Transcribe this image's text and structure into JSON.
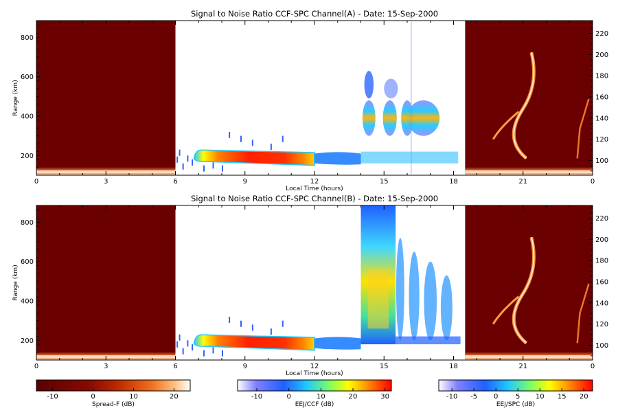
{
  "colors": {
    "spreadf_bg": "#6b0000",
    "spreadf_scale": [
      "#5a0000",
      "#8a0a00",
      "#c03000",
      "#f07020",
      "#ffc080",
      "#ffffff"
    ],
    "ccf_scale": [
      "#ffffff",
      "#8080ff",
      "#2060ff",
      "#20c8ff",
      "#80ff60",
      "#ffff00",
      "#ff8000",
      "#ff0000"
    ],
    "spc_scale": [
      "#ffffff",
      "#8080ff",
      "#2060ff",
      "#20c8ff",
      "#80ff60",
      "#ffff00",
      "#ff8000",
      "#ff0000"
    ]
  },
  "chart_data": [
    {
      "type": "heatmap",
      "title": "Signal to Noise Ratio CCF-SPC Channel(A) - Date: 15-Sep-2000",
      "xlabel": "Local Time (hours)",
      "ylabel": "Range (km)",
      "x_ticks": [
        "0",
        "3",
        "6",
        "9",
        "12",
        "15",
        "18",
        "21",
        "0"
      ],
      "x_tick_values": [
        0,
        3,
        6,
        9,
        12,
        15,
        18,
        21,
        24
      ],
      "y_ticks": [
        "200",
        "400",
        "600",
        "800"
      ],
      "y_tick_values": [
        200,
        400,
        600,
        800
      ],
      "ylim": [
        100,
        885
      ],
      "y2_ticks": [
        "100",
        "120",
        "140",
        "160",
        "180",
        "200",
        "220"
      ],
      "y2_tick_values": [
        100,
        120,
        140,
        160,
        180,
        200,
        220
      ],
      "y2lim": [
        86,
        232
      ],
      "segments": [
        {
          "name": "Spread-F",
          "x_range": [
            0,
            6
          ]
        },
        {
          "name": "EEJ/CCF",
          "x_range": [
            6,
            14
          ]
        },
        {
          "name": "EEJ/SPC",
          "x_range": [
            14,
            18.5
          ]
        },
        {
          "name": "Spread-F",
          "x_range": [
            18.5,
            24
          ]
        }
      ]
    },
    {
      "type": "heatmap",
      "title": "Signal to Noise Ratio CCF-SPC Channel(B) - Date: 15-Sep-2000",
      "xlabel": "Local Time (hours)",
      "ylabel": "Range (km)",
      "x_ticks": [
        "0",
        "3",
        "6",
        "9",
        "12",
        "15",
        "18",
        "21",
        "0"
      ],
      "x_tick_values": [
        0,
        3,
        6,
        9,
        12,
        15,
        18,
        21,
        24
      ],
      "y_ticks": [
        "200",
        "400",
        "600",
        "800"
      ],
      "y_tick_values": [
        200,
        400,
        600,
        800
      ],
      "ylim": [
        100,
        885
      ],
      "y2_ticks": [
        "100",
        "120",
        "140",
        "160",
        "180",
        "200",
        "220"
      ],
      "y2_tick_values": [
        100,
        120,
        140,
        160,
        180,
        200,
        220
      ],
      "y2lim": [
        86,
        232
      ],
      "segments": [
        {
          "name": "Spread-F",
          "x_range": [
            0,
            6
          ]
        },
        {
          "name": "EEJ/CCF",
          "x_range": [
            6,
            14
          ]
        },
        {
          "name": "EEJ/SPC",
          "x_range": [
            14,
            18.5
          ]
        },
        {
          "name": "Spread-F",
          "x_range": [
            18.5,
            24
          ]
        }
      ]
    }
  ],
  "colorbars": [
    {
      "label": "Spread-F (dB)",
      "ticks": [
        "-10",
        "0",
        "10",
        "20"
      ],
      "tick_values": [
        -10,
        0,
        10,
        20
      ],
      "range": [
        -14,
        24
      ]
    },
    {
      "label": "EEJ/CCF (dB)",
      "ticks": [
        "-10",
        "0",
        "10",
        "20",
        "30"
      ],
      "tick_values": [
        -10,
        0,
        10,
        20,
        30
      ],
      "range": [
        -16,
        32
      ]
    },
    {
      "label": "EEJ/SPC (dB)",
      "ticks": [
        "-10",
        "-5",
        "0",
        "5",
        "10",
        "15",
        "20"
      ],
      "tick_values": [
        -10,
        -5,
        0,
        5,
        10,
        15,
        20
      ],
      "range": [
        -13,
        22
      ]
    }
  ]
}
